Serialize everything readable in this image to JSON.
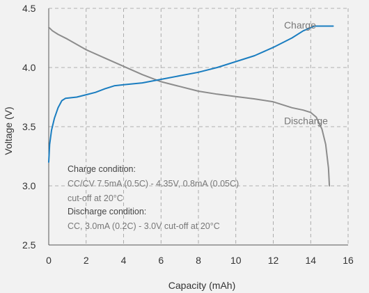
{
  "chart_data": {
    "type": "line",
    "xlabel": "Capacity (mAh)",
    "ylabel": "Voltage (V)",
    "xlim": [
      0,
      16
    ],
    "ylim": [
      2.5,
      4.5
    ],
    "x_ticks": [
      0,
      2,
      4,
      6,
      8,
      10,
      12,
      14,
      16
    ],
    "y_ticks": [
      2.5,
      3.0,
      3.5,
      4.0,
      4.5
    ],
    "x_tick_labels": [
      "0",
      "2",
      "4",
      "6",
      "8",
      "10",
      "12",
      "14",
      "16"
    ],
    "y_tick_labels": [
      "2.5",
      "3.0",
      "3.5",
      "4.0",
      "4.5"
    ],
    "grid": "dashed, both axes",
    "series": [
      {
        "name": "Charge",
        "color": "#1a7dc0",
        "points": [
          [
            0.0,
            3.2
          ],
          [
            0.05,
            3.35
          ],
          [
            0.15,
            3.47
          ],
          [
            0.3,
            3.57
          ],
          [
            0.5,
            3.66
          ],
          [
            0.7,
            3.72
          ],
          [
            0.9,
            3.74
          ],
          [
            1.5,
            3.75
          ],
          [
            2.0,
            3.77
          ],
          [
            2.5,
            3.79
          ],
          [
            3.0,
            3.82
          ],
          [
            3.5,
            3.845
          ],
          [
            4.0,
            3.855
          ],
          [
            5.0,
            3.87
          ],
          [
            6.0,
            3.9
          ],
          [
            7.0,
            3.93
          ],
          [
            8.0,
            3.96
          ],
          [
            9.0,
            4.0
          ],
          [
            10.0,
            4.05
          ],
          [
            11.0,
            4.1
          ],
          [
            12.0,
            4.17
          ],
          [
            13.0,
            4.25
          ],
          [
            13.6,
            4.31
          ],
          [
            14.2,
            4.35
          ],
          [
            15.2,
            4.35
          ]
        ]
      },
      {
        "name": "Discharge",
        "color": "#8c8c8c",
        "points": [
          [
            0.0,
            4.34
          ],
          [
            0.2,
            4.31
          ],
          [
            0.5,
            4.28
          ],
          [
            1.0,
            4.24
          ],
          [
            2.0,
            4.15
          ],
          [
            3.0,
            4.08
          ],
          [
            4.0,
            4.01
          ],
          [
            5.0,
            3.94
          ],
          [
            6.0,
            3.88
          ],
          [
            7.0,
            3.84
          ],
          [
            8.0,
            3.8
          ],
          [
            9.0,
            3.775
          ],
          [
            10.0,
            3.755
          ],
          [
            11.0,
            3.735
          ],
          [
            12.0,
            3.71
          ],
          [
            13.0,
            3.66
          ],
          [
            13.6,
            3.64
          ],
          [
            14.0,
            3.62
          ],
          [
            14.3,
            3.58
          ],
          [
            14.6,
            3.48
          ],
          [
            14.8,
            3.35
          ],
          [
            14.95,
            3.15
          ],
          [
            15.0,
            3.0
          ]
        ]
      }
    ],
    "series_labels": [
      {
        "text": "Charge",
        "x": 12.5,
        "y": 4.36
      },
      {
        "text": "Discharge",
        "x": 12.5,
        "y": 3.55
      }
    ],
    "annotation": {
      "charge_heading": "Charge condition:",
      "charge_line1": "CC/CV 7.5mA (0.5C) - 4.35V, 0.8mA (0.05C)",
      "charge_line2": "cut-off at 20°C",
      "discharge_heading": "Discharge condition:",
      "discharge_line1": "CC, 3.0mA (0.2C) - 3.0V cut-off at 20°C"
    }
  }
}
